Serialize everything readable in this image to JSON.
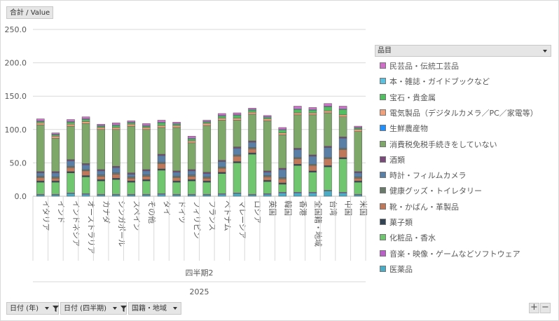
{
  "value_field_button": "合計 / Value",
  "legend_title": "品目",
  "filter_buttons": [
    "日付 (年)",
    "日付 (四半期)",
    "国籍・地域"
  ],
  "zoom": {
    "plus": "+",
    "minus": "−"
  },
  "chart_data": {
    "type": "bar",
    "stacked": true,
    "ylim": [
      0,
      250
    ],
    "yticks": [
      "0.0",
      "50.0",
      "100.0",
      "150.0",
      "200.0",
      "250.0"
    ],
    "grid": true,
    "legend_position": "right",
    "x_group_labels": [
      "四半期2",
      "2025"
    ],
    "categories": [
      "イタリア",
      "インド",
      "インドネシア",
      "オーストラリア",
      "カナダ",
      "シンガポール",
      "スペイン",
      "その他",
      "タイ",
      "ドイツ",
      "フィリピン",
      "フランス",
      "ベトナム",
      "マレーシア",
      "ロシア",
      "英国",
      "韓国",
      "香港",
      "全国籍・地域",
      "台湾",
      "中国",
      "米国"
    ],
    "series": [
      {
        "name": "医薬品",
        "color": "#4bacc6",
        "values": [
          2,
          2,
          4,
          3,
          2,
          2,
          2,
          2,
          3,
          2,
          2,
          2,
          3,
          4,
          2,
          3,
          5,
          5,
          5,
          8,
          5,
          2
        ]
      },
      {
        "name": "音楽・映像・ゲームなどソフトウェア",
        "color": "#b95fc7",
        "values": [
          1,
          1,
          1,
          1,
          1,
          1,
          1,
          1,
          1,
          1,
          1,
          1,
          1,
          1,
          1,
          1,
          1,
          1,
          1,
          1,
          1,
          1
        ]
      },
      {
        "name": "化粧品・香水",
        "color": "#70c66e",
        "values": [
          18,
          18,
          30,
          25,
          20,
          22,
          18,
          20,
          35,
          18,
          20,
          18,
          30,
          45,
          60,
          18,
          12,
          40,
          30,
          35,
          50,
          18
        ]
      },
      {
        "name": "菓子類",
        "color": "#334455",
        "values": [
          2,
          2,
          2,
          2,
          2,
          2,
          2,
          2,
          2,
          2,
          2,
          2,
          2,
          2,
          2,
          2,
          2,
          2,
          2,
          2,
          2,
          2
        ]
      },
      {
        "name": "靴・かばん・革製品",
        "color": "#c0785a",
        "values": [
          5,
          4,
          6,
          7,
          5,
          6,
          4,
          5,
          8,
          5,
          5,
          4,
          6,
          8,
          6,
          5,
          6,
          8,
          8,
          10,
          12,
          4
        ]
      },
      {
        "name": "健康グッズ・トイレタリー",
        "color": "#6a7a6a",
        "values": [
          2,
          2,
          2,
          2,
          2,
          2,
          2,
          2,
          2,
          2,
          2,
          2,
          2,
          2,
          2,
          2,
          2,
          2,
          2,
          2,
          2,
          2
        ]
      },
      {
        "name": "時計・フィルムカメラ",
        "color": "#5a7fa6",
        "values": [
          5,
          6,
          8,
          7,
          6,
          8,
          4,
          6,
          10,
          6,
          6,
          5,
          8,
          10,
          8,
          5,
          12,
          12,
          12,
          15,
          15,
          6
        ]
      },
      {
        "name": "酒類",
        "color": "#7a4a7a",
        "values": [
          2,
          2,
          2,
          2,
          2,
          2,
          2,
          2,
          2,
          2,
          2,
          2,
          2,
          2,
          2,
          2,
          2,
          2,
          2,
          2,
          2,
          2
        ]
      },
      {
        "name": "消費税免税手続きをしていない",
        "color": "#7ea86a",
        "values": [
          70,
          50,
          50,
          60,
          60,
          55,
          70,
          60,
          40,
          65,
          40,
          70,
          60,
          40,
          40,
          75,
          50,
          50,
          60,
          50,
          30,
          60
        ]
      },
      {
        "name": "生鮮農産物",
        "color": "#1e90ff",
        "values": [
          0,
          0,
          0,
          0,
          0,
          0,
          0,
          0,
          0,
          0,
          0,
          0,
          0,
          0,
          0,
          0,
          0,
          0,
          0,
          0,
          0,
          0
        ]
      },
      {
        "name": "電気製品（デジタルカメラ／PC／家電等）",
        "color": "#f0a07a",
        "values": [
          3,
          3,
          3,
          3,
          3,
          3,
          3,
          3,
          3,
          3,
          3,
          3,
          3,
          3,
          3,
          3,
          3,
          3,
          3,
          3,
          3,
          3
        ]
      },
      {
        "name": "宝石・貴金属",
        "color": "#4fbf5f",
        "values": [
          2,
          2,
          3,
          3,
          2,
          3,
          2,
          2,
          4,
          2,
          3,
          2,
          3,
          4,
          3,
          2,
          4,
          5,
          4,
          6,
          8,
          2
        ]
      },
      {
        "name": "本・雑誌・ガイドブックなど",
        "color": "#5bc0de",
        "values": [
          1,
          1,
          1,
          1,
          1,
          1,
          1,
          1,
          1,
          1,
          1,
          1,
          1,
          1,
          1,
          1,
          1,
          1,
          1,
          1,
          1,
          1
        ]
      },
      {
        "name": "民芸品・伝統工芸品",
        "color": "#d06fc7",
        "values": [
          3,
          2,
          3,
          3,
          2,
          3,
          2,
          3,
          3,
          2,
          3,
          2,
          3,
          3,
          2,
          2,
          3,
          4,
          3,
          4,
          4,
          2
        ]
      }
    ]
  }
}
